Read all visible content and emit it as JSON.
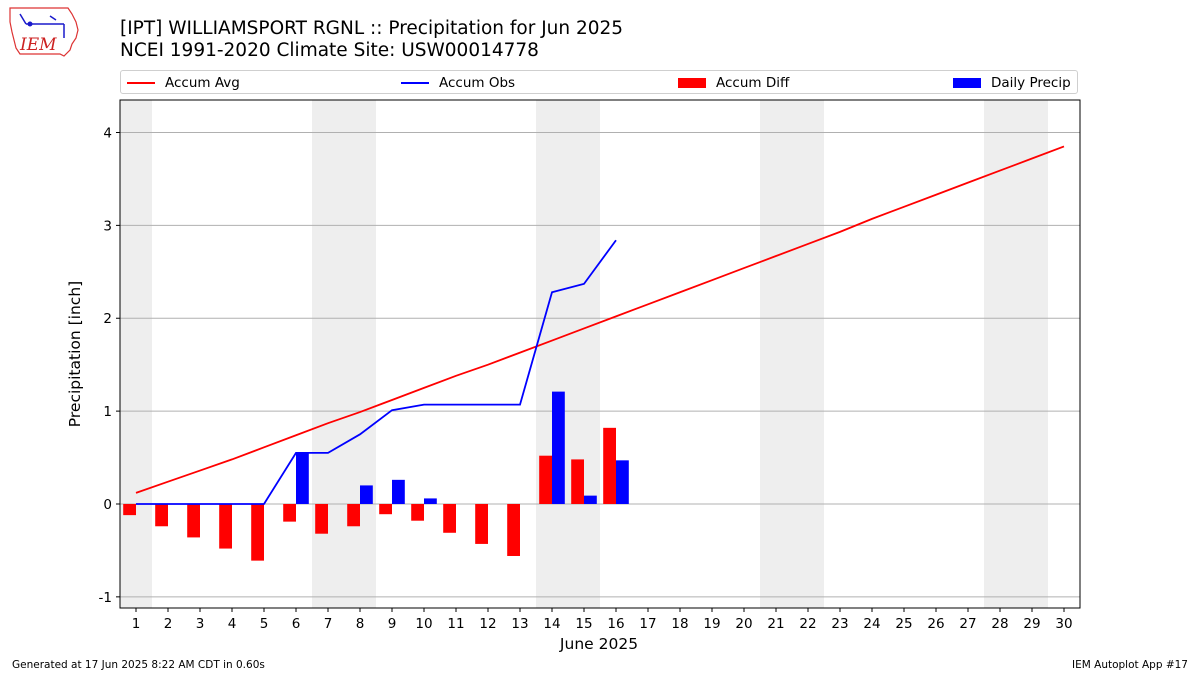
{
  "header": {
    "title_line1": "[IPT] WILLIAMSPORT RGNL :: Precipitation for Jun 2025",
    "title_line2": "NCEI 1991-2020 Climate Site: USW00014778"
  },
  "logo": {
    "text": "IEM",
    "icon": "iem-iowa-map-logo"
  },
  "legend": [
    {
      "label": "Accum Avg",
      "kind": "line",
      "color": "#ff0000"
    },
    {
      "label": "Accum Obs",
      "kind": "line",
      "color": "#0000ff"
    },
    {
      "label": "Accum Diff",
      "kind": "bar",
      "color": "#ff0000"
    },
    {
      "label": "Daily Precip",
      "kind": "bar",
      "color": "#0000ff"
    }
  ],
  "footer": {
    "left": "Generated at 17 Jun 2025 8:22 AM CDT in 0.60s",
    "right": "IEM Autoplot App #17"
  },
  "chart_data": {
    "type": "bar",
    "xlabel": "June 2025",
    "ylabel": "Precipitation [inch]",
    "ylim": [
      -1.12,
      4.35
    ],
    "xlim": [
      0.5,
      30.5
    ],
    "yticks": [
      -1,
      0,
      1,
      2,
      3,
      4
    ],
    "xticks": [
      1,
      2,
      3,
      4,
      5,
      6,
      7,
      8,
      9,
      10,
      11,
      12,
      13,
      14,
      15,
      16,
      17,
      18,
      19,
      20,
      21,
      22,
      23,
      24,
      25,
      26,
      27,
      28,
      29,
      30
    ],
    "grid": "horizontal",
    "weekend_shading": [
      [
        0.5,
        1.5
      ],
      [
        6.5,
        8.5
      ],
      [
        13.5,
        15.5
      ],
      [
        20.5,
        22.5
      ],
      [
        27.5,
        29.5
      ]
    ],
    "series": [
      {
        "name": "Accum Avg",
        "type": "line",
        "color": "#ff0000",
        "x": [
          1,
          2,
          3,
          4,
          5,
          6,
          7,
          8,
          9,
          10,
          11,
          12,
          13,
          14,
          15,
          16,
          17,
          18,
          19,
          20,
          21,
          22,
          23,
          24,
          25,
          26,
          27,
          28,
          29,
          30
        ],
        "values": [
          0.12,
          0.24,
          0.36,
          0.48,
          0.61,
          0.74,
          0.87,
          0.99,
          1.12,
          1.25,
          1.38,
          1.5,
          1.63,
          1.76,
          1.89,
          2.02,
          2.15,
          2.28,
          2.41,
          2.54,
          2.67,
          2.8,
          2.93,
          3.07,
          3.2,
          3.33,
          3.46,
          3.59,
          3.72,
          3.85
        ]
      },
      {
        "name": "Accum Obs",
        "type": "line",
        "color": "#0000ff",
        "x": [
          1,
          2,
          3,
          4,
          5,
          6,
          7,
          8,
          9,
          10,
          11,
          12,
          13,
          14,
          15,
          16
        ],
        "values": [
          0.0,
          0.0,
          0.0,
          0.0,
          0.0,
          0.55,
          0.55,
          0.75,
          1.01,
          1.07,
          1.07,
          1.07,
          1.07,
          2.28,
          2.37,
          2.84
        ]
      },
      {
        "name": "Accum Diff",
        "type": "bar",
        "color": "#ff0000",
        "x": [
          1,
          2,
          3,
          4,
          5,
          6,
          7,
          8,
          9,
          10,
          11,
          12,
          13,
          14,
          15,
          16
        ],
        "values": [
          -0.12,
          -0.24,
          -0.36,
          -0.48,
          -0.61,
          -0.19,
          -0.32,
          -0.24,
          -0.11,
          -0.18,
          -0.31,
          -0.43,
          -0.56,
          0.52,
          0.48,
          0.82
        ]
      },
      {
        "name": "Daily Precip",
        "type": "bar",
        "color": "#0000ff",
        "x": [
          1,
          2,
          3,
          4,
          5,
          6,
          7,
          8,
          9,
          10,
          11,
          12,
          13,
          14,
          15,
          16
        ],
        "values": [
          0,
          0,
          0,
          0,
          0,
          0.55,
          0,
          0.2,
          0.26,
          0.06,
          0,
          0,
          0,
          1.21,
          0.09,
          0.47
        ]
      }
    ]
  }
}
